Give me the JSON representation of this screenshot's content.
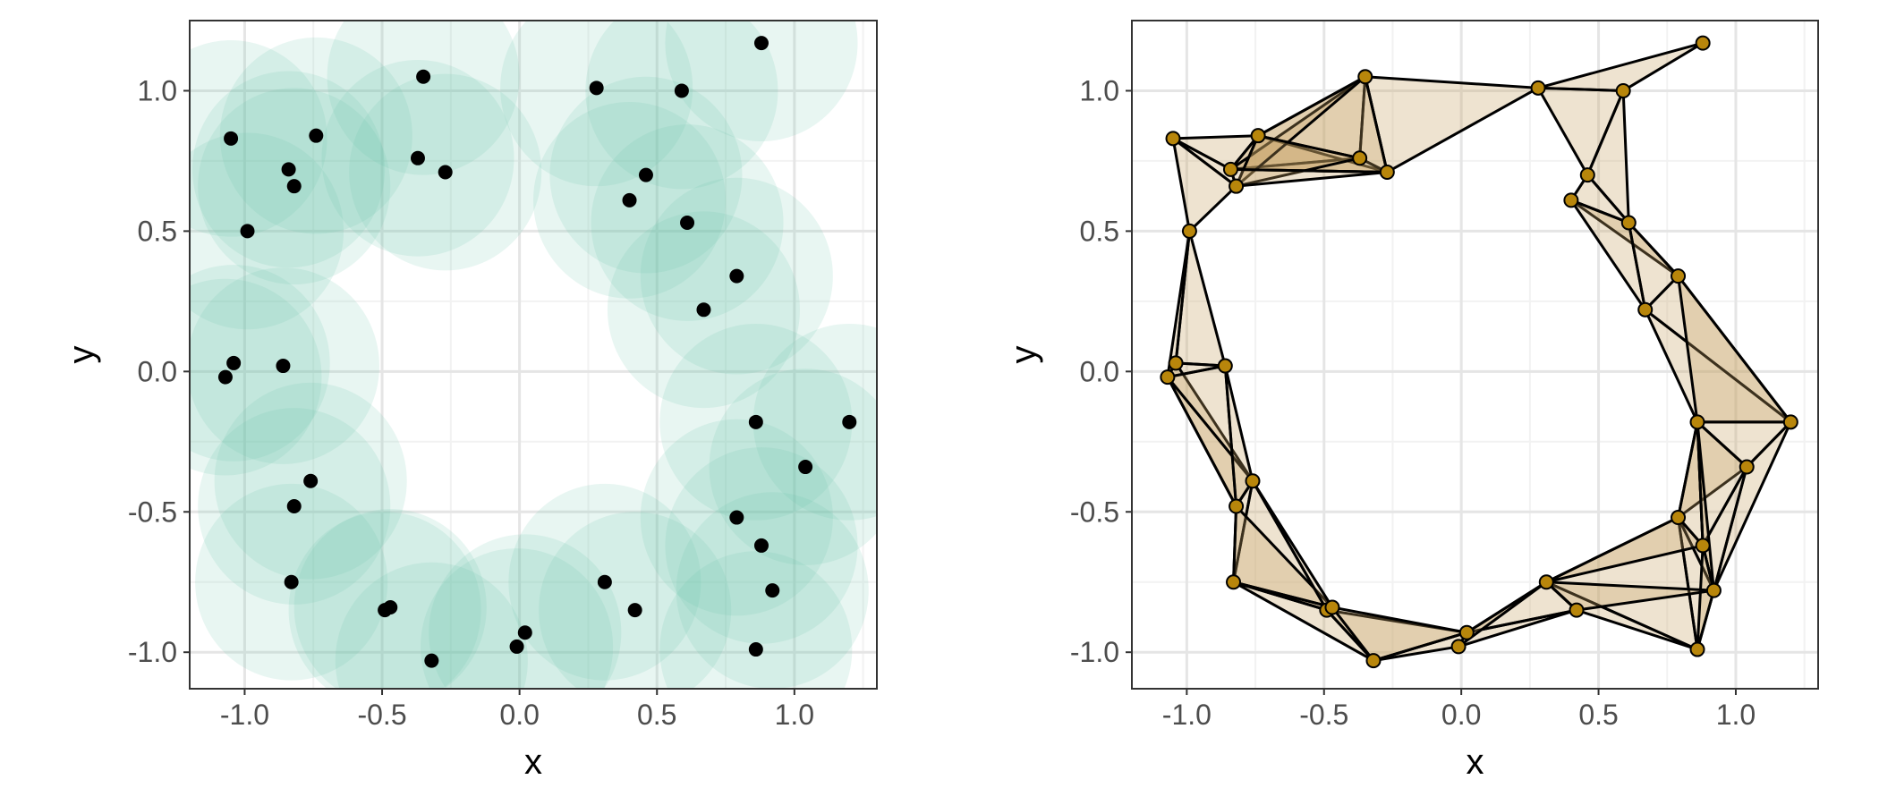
{
  "colors": {
    "ball_fill": "#66c2a5",
    "ball_opacity": 0.15,
    "point": "#000000",
    "vertex_fill": "#b8860b",
    "simplex_fill": "#c8a165",
    "simplex_opacity": 0.3,
    "edge": "#000000",
    "grid_major": "#e5e5e5",
    "grid_minor": "#f2f2f2",
    "panel_border": "#333333"
  },
  "chart_data": [
    {
      "type": "scatter",
      "title": "",
      "xlabel": "x",
      "ylabel": "y",
      "xlim": [
        -1.2,
        1.3
      ],
      "ylim": [
        -1.13,
        1.25
      ],
      "xticks": [
        -1.0,
        -0.5,
        0.0,
        0.5,
        1.0
      ],
      "xtick_labels": [
        "-1.0",
        "-0.5",
        "0.0",
        "0.5",
        "1.0"
      ],
      "yticks": [
        -1.0,
        -0.5,
        0.0,
        0.5,
        1.0
      ],
      "ytick_labels": [
        "-1.0",
        "-0.5",
        "0.0",
        "0.5",
        "1.0"
      ],
      "grid": true,
      "ball_radius": 0.35,
      "points": [
        [
          0.88,
          1.17
        ],
        [
          -0.35,
          1.05
        ],
        [
          0.28,
          1.01
        ],
        [
          0.59,
          1.0
        ],
        [
          -1.05,
          0.83
        ],
        [
          -0.74,
          0.84
        ],
        [
          -0.37,
          0.76
        ],
        [
          -0.84,
          0.72
        ],
        [
          -0.82,
          0.66
        ],
        [
          -0.27,
          0.71
        ],
        [
          0.46,
          0.7
        ],
        [
          0.4,
          0.61
        ],
        [
          -0.99,
          0.5
        ],
        [
          0.61,
          0.53
        ],
        [
          0.79,
          0.34
        ],
        [
          0.67,
          0.22
        ],
        [
          -1.04,
          0.03
        ],
        [
          -1.07,
          -0.02
        ],
        [
          -0.86,
          0.02
        ],
        [
          0.86,
          -0.18
        ],
        [
          1.2,
          -0.18
        ],
        [
          1.04,
          -0.34
        ],
        [
          -0.76,
          -0.39
        ],
        [
          -0.82,
          -0.48
        ],
        [
          0.79,
          -0.52
        ],
        [
          0.88,
          -0.62
        ],
        [
          -0.83,
          -0.75
        ],
        [
          0.31,
          -0.75
        ],
        [
          0.92,
          -0.78
        ],
        [
          -0.49,
          -0.85
        ],
        [
          -0.47,
          -0.84
        ],
        [
          0.42,
          -0.85
        ],
        [
          0.02,
          -0.93
        ],
        [
          -0.01,
          -0.98
        ],
        [
          0.86,
          -0.99
        ],
        [
          -0.32,
          -1.03
        ]
      ]
    },
    {
      "type": "scatter",
      "title": "",
      "xlabel": "x",
      "ylabel": "y",
      "xlim": [
        -1.2,
        1.3
      ],
      "ylim": [
        -1.13,
        1.25
      ],
      "xticks": [
        -1.0,
        -0.5,
        0.0,
        0.5,
        1.0
      ],
      "xtick_labels": [
        "-1.0",
        "-0.5",
        "0.0",
        "0.5",
        "1.0"
      ],
      "yticks": [
        -1.0,
        -0.5,
        0.0,
        0.5,
        1.0
      ],
      "ytick_labels": [
        "-1.0",
        "-0.5",
        "0.0",
        "0.5",
        "1.0"
      ],
      "grid": true,
      "points": [
        [
          0.88,
          1.17
        ],
        [
          -0.35,
          1.05
        ],
        [
          0.28,
          1.01
        ],
        [
          0.59,
          1.0
        ],
        [
          -1.05,
          0.83
        ],
        [
          -0.74,
          0.84
        ],
        [
          -0.37,
          0.76
        ],
        [
          -0.84,
          0.72
        ],
        [
          -0.82,
          0.66
        ],
        [
          -0.27,
          0.71
        ],
        [
          0.46,
          0.7
        ],
        [
          0.4,
          0.61
        ],
        [
          -0.99,
          0.5
        ],
        [
          0.61,
          0.53
        ],
        [
          0.79,
          0.34
        ],
        [
          0.67,
          0.22
        ],
        [
          -1.04,
          0.03
        ],
        [
          -1.07,
          -0.02
        ],
        [
          -0.86,
          0.02
        ],
        [
          0.86,
          -0.18
        ],
        [
          1.2,
          -0.18
        ],
        [
          1.04,
          -0.34
        ],
        [
          -0.76,
          -0.39
        ],
        [
          -0.82,
          -0.48
        ],
        [
          0.79,
          -0.52
        ],
        [
          0.88,
          -0.62
        ],
        [
          -0.83,
          -0.75
        ],
        [
          0.31,
          -0.75
        ],
        [
          0.92,
          -0.78
        ],
        [
          -0.49,
          -0.85
        ],
        [
          -0.47,
          -0.84
        ],
        [
          0.42,
          -0.85
        ],
        [
          0.02,
          -0.93
        ],
        [
          -0.01,
          -0.98
        ],
        [
          0.86,
          -0.99
        ],
        [
          -0.32,
          -1.03
        ]
      ],
      "triangles": [
        [
          1,
          2,
          9
        ],
        [
          0,
          2,
          3
        ],
        [
          2,
          3,
          10
        ],
        [
          3,
          10,
          13
        ],
        [
          4,
          5,
          7
        ],
        [
          4,
          7,
          8
        ],
        [
          4,
          8,
          12
        ],
        [
          5,
          6,
          7
        ],
        [
          5,
          7,
          9
        ],
        [
          6,
          7,
          9
        ],
        [
          1,
          5,
          6
        ],
        [
          1,
          6,
          9
        ],
        [
          1,
          7,
          9
        ],
        [
          1,
          5,
          8
        ],
        [
          5,
          6,
          8
        ],
        [
          7,
          8,
          9
        ],
        [
          10,
          11,
          13
        ],
        [
          11,
          13,
          14
        ],
        [
          11,
          13,
          15
        ],
        [
          13,
          14,
          15
        ],
        [
          12,
          16,
          18
        ],
        [
          12,
          16,
          17
        ],
        [
          16,
          17,
          18
        ],
        [
          16,
          17,
          22
        ],
        [
          17,
          18,
          23
        ],
        [
          17,
          22,
          23
        ],
        [
          18,
          22,
          23
        ],
        [
          14,
          15,
          20
        ],
        [
          15,
          19,
          20
        ],
        [
          14,
          19,
          20
        ],
        [
          19,
          20,
          21
        ],
        [
          19,
          21,
          24
        ],
        [
          19,
          21,
          25
        ],
        [
          19,
          24,
          25
        ],
        [
          20,
          21,
          28
        ],
        [
          21,
          25,
          28
        ],
        [
          24,
          25,
          28
        ],
        [
          19,
          25,
          28
        ],
        [
          24,
          28,
          34
        ],
        [
          25,
          28,
          34
        ],
        [
          24,
          27,
          34
        ],
        [
          27,
          31,
          34
        ],
        [
          27,
          31,
          28
        ],
        [
          24,
          27,
          25
        ],
        [
          22,
          23,
          26
        ],
        [
          22,
          26,
          29
        ],
        [
          23,
          26,
          30
        ],
        [
          22,
          29,
          30
        ],
        [
          26,
          29,
          35
        ],
        [
          29,
          30,
          35
        ],
        [
          26,
          30,
          29
        ],
        [
          29,
          32,
          35
        ],
        [
          32,
          33,
          35
        ],
        [
          30,
          32,
          35
        ],
        [
          31,
          32,
          33
        ],
        [
          27,
          31,
          32
        ],
        [
          27,
          32,
          33
        ]
      ]
    }
  ]
}
